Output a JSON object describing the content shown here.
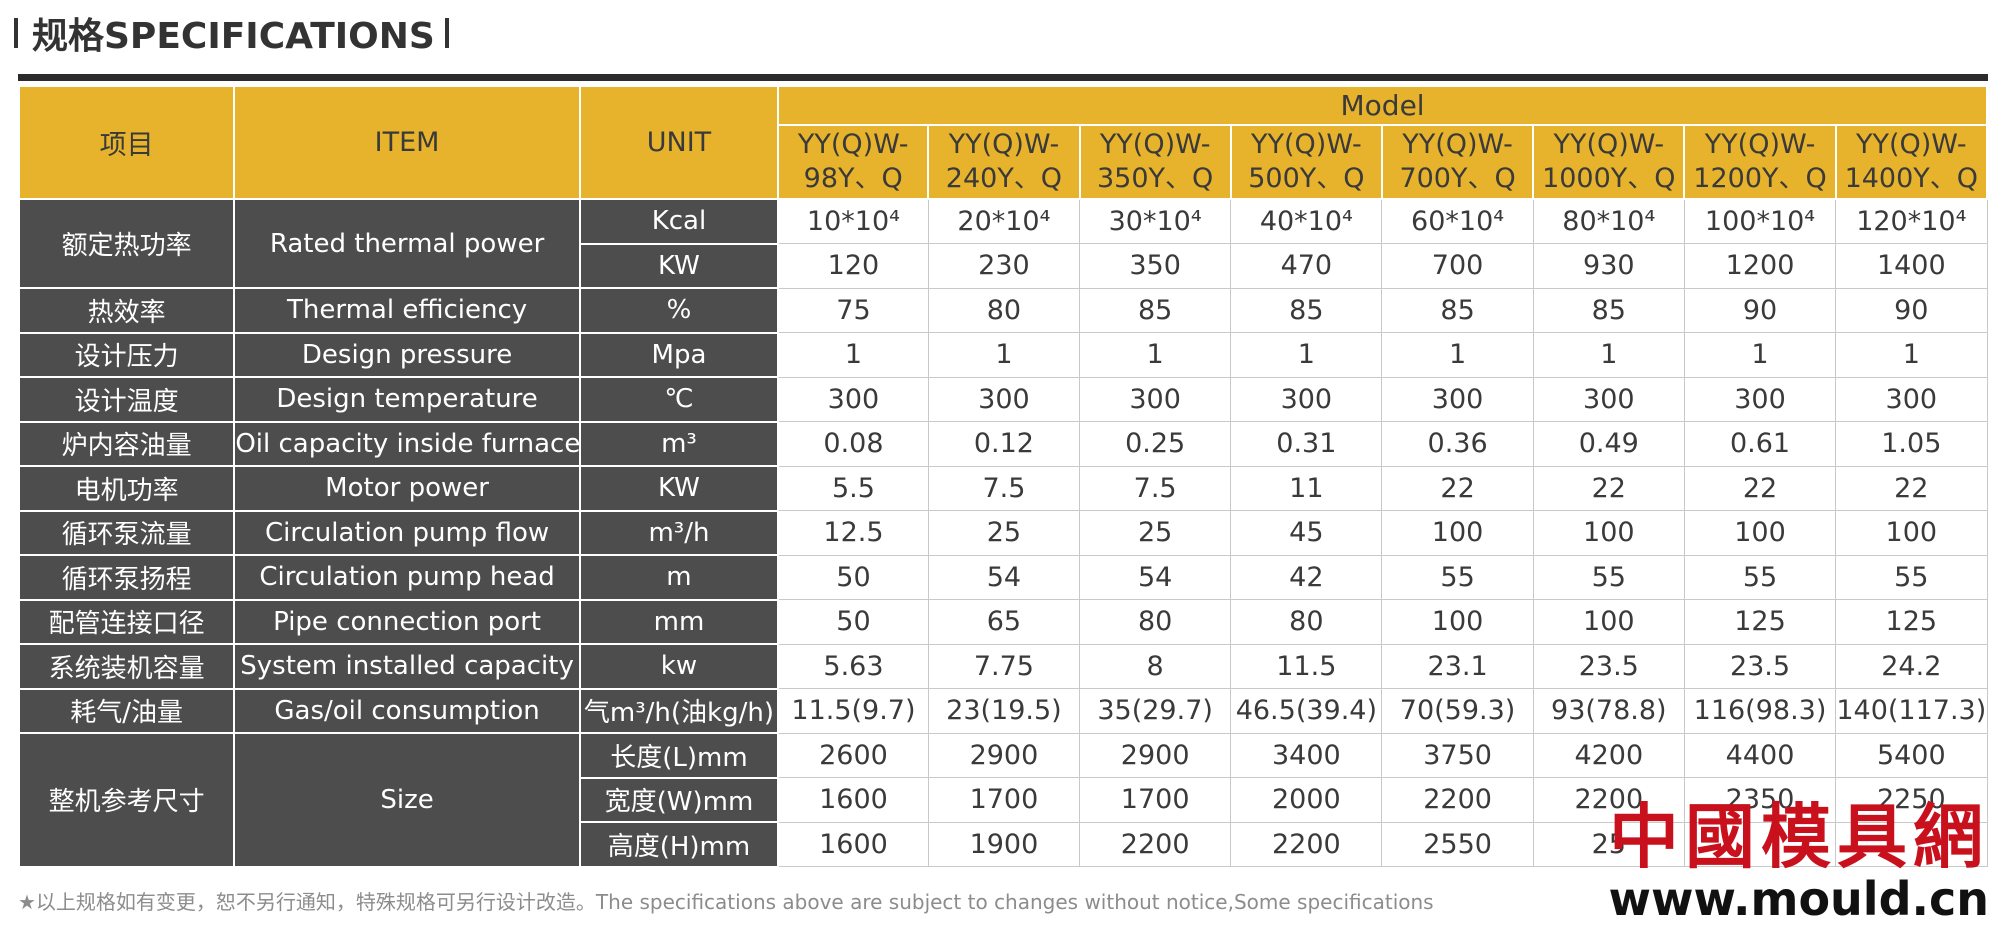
{
  "section_title": "规格SPECIFICATIONS",
  "header": {
    "col_cn": "项目",
    "col_item": "ITEM",
    "col_unit": "UNIT",
    "model_label": "Model",
    "models": [
      "YY(Q)W-98Y、Q",
      "YY(Q)W-240Y、Q",
      "YY(Q)W-350Y、Q",
      "YY(Q)W-500Y、Q",
      "YY(Q)W-700Y、Q",
      "YY(Q)W-1000Y、Q",
      "YY(Q)W-1200Y、Q",
      "YY(Q)W-1400Y、Q"
    ]
  },
  "rows": [
    {
      "cn": "额定热功率",
      "en": "Rated thermal power",
      "units": [
        {
          "unit": "Kcal",
          "values": [
            "10*10⁴",
            "20*10⁴",
            "30*10⁴",
            "40*10⁴",
            "60*10⁴",
            "80*10⁴",
            "100*10⁴",
            "120*10⁴"
          ]
        },
        {
          "unit": "KW",
          "values": [
            "120",
            "230",
            "350",
            "470",
            "700",
            "930",
            "1200",
            "1400"
          ]
        }
      ]
    },
    {
      "cn": "热效率",
      "en": "Thermal efficiency",
      "units": [
        {
          "unit": "%",
          "values": [
            "75",
            "80",
            "85",
            "85",
            "85",
            "85",
            "90",
            "90"
          ]
        }
      ]
    },
    {
      "cn": "设计压力",
      "en": "Design pressure",
      "units": [
        {
          "unit": "Mpa",
          "values": [
            "1",
            "1",
            "1",
            "1",
            "1",
            "1",
            "1",
            "1"
          ]
        }
      ]
    },
    {
      "cn": "设计温度",
      "en": "Design temperature",
      "units": [
        {
          "unit": "℃",
          "values": [
            "300",
            "300",
            "300",
            "300",
            "300",
            "300",
            "300",
            "300"
          ]
        }
      ]
    },
    {
      "cn": "炉内容油量",
      "en": "Oil capacity inside furnace",
      "units": [
        {
          "unit": "m³",
          "values": [
            "0.08",
            "0.12",
            "0.25",
            "0.31",
            "0.36",
            "0.49",
            "0.61",
            "1.05"
          ]
        }
      ]
    },
    {
      "cn": "电机功率",
      "en": "Motor power",
      "units": [
        {
          "unit": "KW",
          "values": [
            "5.5",
            "7.5",
            "7.5",
            "11",
            "22",
            "22",
            "22",
            "22"
          ]
        }
      ]
    },
    {
      "cn": "循环泵流量",
      "en": "Circulation pump flow",
      "units": [
        {
          "unit": "m³/h",
          "values": [
            "12.5",
            "25",
            "25",
            "45",
            "100",
            "100",
            "100",
            "100"
          ]
        }
      ]
    },
    {
      "cn": "循环泵扬程",
      "en": "Circulation pump head",
      "units": [
        {
          "unit": "m",
          "values": [
            "50",
            "54",
            "54",
            "42",
            "55",
            "55",
            "55",
            "55"
          ]
        }
      ]
    },
    {
      "cn": "配管连接口径",
      "en": "Pipe connection port",
      "units": [
        {
          "unit": "mm",
          "values": [
            "50",
            "65",
            "80",
            "80",
            "100",
            "100",
            "125",
            "125"
          ]
        }
      ]
    },
    {
      "cn": "系统装机容量",
      "en": "System installed capacity",
      "units": [
        {
          "unit": "kw",
          "values": [
            "5.63",
            "7.75",
            "8",
            "11.5",
            "23.1",
            "23.5",
            "23.5",
            "24.2"
          ]
        }
      ]
    },
    {
      "cn": "耗气/油量",
      "en": "Gas/oil consumption",
      "units": [
        {
          "unit": "气m³/h(油kg/h)",
          "values": [
            "11.5(9.7)",
            "23(19.5)",
            "35(29.7)",
            "46.5(39.4)",
            "70(59.3)",
            "93(78.8)",
            "116(98.3)",
            "140(117.3)"
          ]
        }
      ]
    },
    {
      "cn": "整机参考尺寸",
      "en": "Size",
      "units": [
        {
          "unit": "长度(L)mm",
          "values": [
            "2600",
            "2900",
            "2900",
            "3400",
            "3750",
            "4200",
            "4400",
            "5400"
          ]
        },
        {
          "unit": "宽度(W)mm",
          "values": [
            "1600",
            "1700",
            "1700",
            "2000",
            "2200",
            "2200",
            "2350",
            "2250"
          ]
        },
        {
          "unit": "高度(H)mm",
          "values": [
            "1600",
            "1900",
            "2200",
            "2200",
            "2550",
            "25",
            "",
            ""
          ]
        }
      ]
    }
  ],
  "footnote": "★以上规格如有变更，恕不另行通知，特殊规格可另行设计改造。The specifications above are subject to changes without notice,Some specifications",
  "watermark": {
    "cn": "中國模具網",
    "url": "www.mould.cn"
  },
  "colors": {
    "header_bg": "#e7b32c",
    "label_bg": "#4d4d4d",
    "topline": "#2b2b2b",
    "watermark_red": "#c8111d"
  }
}
